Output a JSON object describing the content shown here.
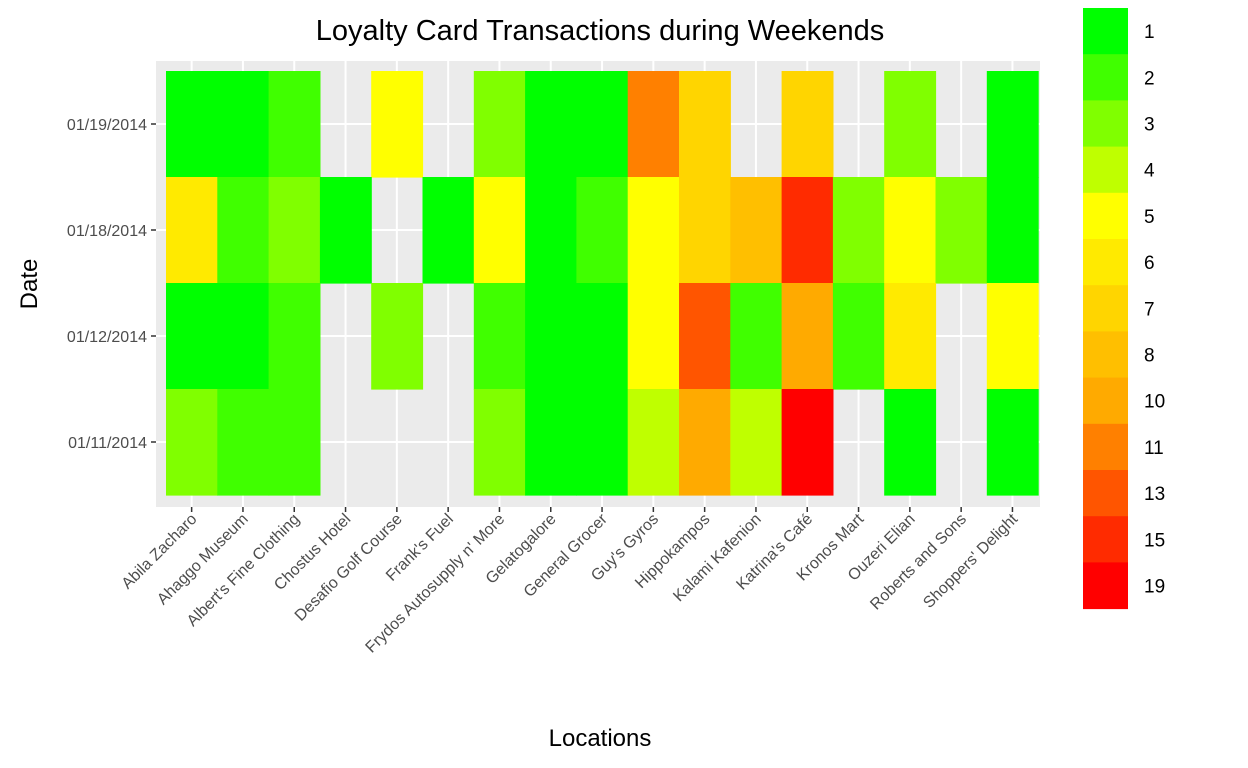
{
  "chart_data": {
    "type": "heatmap",
    "title": "Loyalty Card Transactions during Weekends",
    "xlabel": "Locations",
    "ylabel": "Date",
    "grid": true,
    "legend_position": "right",
    "x_categories": [
      "Abila Zacharo",
      "Ahaggo Museum",
      "Albert's Fine Clothing",
      "Chostus Hotel",
      "Desafio Golf Course",
      "Frank's Fuel",
      "Frydos Autosupply n' More",
      "Gelatogalore",
      "General Grocer",
      "Guy's Gyros",
      "Hippokampos",
      "Kalami Kafenion",
      "Katrina's Café",
      "Kronos Mart",
      "Ouzeri Elian",
      "Roberts and Sons",
      "Shoppers' Delight"
    ],
    "y_categories": [
      "01/11/2014",
      "01/12/2014",
      "01/18/2014",
      "01/19/2014"
    ],
    "cells": [
      {
        "x": "Abila Zacharo",
        "y": "01/19/2014",
        "value": 1
      },
      {
        "x": "Ahaggo Museum",
        "y": "01/19/2014",
        "value": 1
      },
      {
        "x": "Albert's Fine Clothing",
        "y": "01/19/2014",
        "value": 2
      },
      {
        "x": "Desafio Golf Course",
        "y": "01/19/2014",
        "value": 5
      },
      {
        "x": "Frydos Autosupply n' More",
        "y": "01/19/2014",
        "value": 3
      },
      {
        "x": "Gelatogalore",
        "y": "01/19/2014",
        "value": 1
      },
      {
        "x": "General Grocer",
        "y": "01/19/2014",
        "value": 1
      },
      {
        "x": "Guy's Gyros",
        "y": "01/19/2014",
        "value": 11
      },
      {
        "x": "Hippokampos",
        "y": "01/19/2014",
        "value": 7
      },
      {
        "x": "Katrina's Café",
        "y": "01/19/2014",
        "value": 7
      },
      {
        "x": "Ouzeri Elian",
        "y": "01/19/2014",
        "value": 3
      },
      {
        "x": "Shoppers' Delight",
        "y": "01/19/2014",
        "value": 1
      },
      {
        "x": "Abila Zacharo",
        "y": "01/18/2014",
        "value": 6
      },
      {
        "x": "Ahaggo Museum",
        "y": "01/18/2014",
        "value": 2
      },
      {
        "x": "Albert's Fine Clothing",
        "y": "01/18/2014",
        "value": 3
      },
      {
        "x": "Chostus Hotel",
        "y": "01/18/2014",
        "value": 1
      },
      {
        "x": "Frank's Fuel",
        "y": "01/18/2014",
        "value": 1
      },
      {
        "x": "Frydos Autosupply n' More",
        "y": "01/18/2014",
        "value": 5
      },
      {
        "x": "Gelatogalore",
        "y": "01/18/2014",
        "value": 1
      },
      {
        "x": "General Grocer",
        "y": "01/18/2014",
        "value": 2
      },
      {
        "x": "Guy's Gyros",
        "y": "01/18/2014",
        "value": 5
      },
      {
        "x": "Hippokampos",
        "y": "01/18/2014",
        "value": 7
      },
      {
        "x": "Kalami Kafenion",
        "y": "01/18/2014",
        "value": 8
      },
      {
        "x": "Katrina's Café",
        "y": "01/18/2014",
        "value": 15
      },
      {
        "x": "Kronos Mart",
        "y": "01/18/2014",
        "value": 3
      },
      {
        "x": "Ouzeri Elian",
        "y": "01/18/2014",
        "value": 5
      },
      {
        "x": "Roberts and Sons",
        "y": "01/18/2014",
        "value": 3
      },
      {
        "x": "Shoppers' Delight",
        "y": "01/18/2014",
        "value": 1
      },
      {
        "x": "Abila Zacharo",
        "y": "01/12/2014",
        "value": 1
      },
      {
        "x": "Ahaggo Museum",
        "y": "01/12/2014",
        "value": 1
      },
      {
        "x": "Albert's Fine Clothing",
        "y": "01/12/2014",
        "value": 2
      },
      {
        "x": "Desafio Golf Course",
        "y": "01/12/2014",
        "value": 3
      },
      {
        "x": "Frydos Autosupply n' More",
        "y": "01/12/2014",
        "value": 2
      },
      {
        "x": "Gelatogalore",
        "y": "01/12/2014",
        "value": 1
      },
      {
        "x": "General Grocer",
        "y": "01/12/2014",
        "value": 1
      },
      {
        "x": "Guy's Gyros",
        "y": "01/12/2014",
        "value": 5
      },
      {
        "x": "Hippokampos",
        "y": "01/12/2014",
        "value": 13
      },
      {
        "x": "Kalami Kafenion",
        "y": "01/12/2014",
        "value": 2
      },
      {
        "x": "Katrina's Café",
        "y": "01/12/2014",
        "value": 10
      },
      {
        "x": "Kronos Mart",
        "y": "01/12/2014",
        "value": 2
      },
      {
        "x": "Ouzeri Elian",
        "y": "01/12/2014",
        "value": 6
      },
      {
        "x": "Shoppers' Delight",
        "y": "01/12/2014",
        "value": 5
      },
      {
        "x": "Abila Zacharo",
        "y": "01/11/2014",
        "value": 3
      },
      {
        "x": "Ahaggo Museum",
        "y": "01/11/2014",
        "value": 2
      },
      {
        "x": "Albert's Fine Clothing",
        "y": "01/11/2014",
        "value": 2
      },
      {
        "x": "Frydos Autosupply n' More",
        "y": "01/11/2014",
        "value": 3
      },
      {
        "x": "Gelatogalore",
        "y": "01/11/2014",
        "value": 1
      },
      {
        "x": "General Grocer",
        "y": "01/11/2014",
        "value": 1
      },
      {
        "x": "Guy's Gyros",
        "y": "01/11/2014",
        "value": 4
      },
      {
        "x": "Hippokampos",
        "y": "01/11/2014",
        "value": 10
      },
      {
        "x": "Kalami Kafenion",
        "y": "01/11/2014",
        "value": 4
      },
      {
        "x": "Katrina's Café",
        "y": "01/11/2014",
        "value": 19
      },
      {
        "x": "Ouzeri Elian",
        "y": "01/11/2014",
        "value": 1
      },
      {
        "x": "Shoppers' Delight",
        "y": "01/11/2014",
        "value": 1
      }
    ],
    "legend": [
      {
        "label": "1",
        "color": "#00ff00"
      },
      {
        "label": "2",
        "color": "#40ff00"
      },
      {
        "label": "3",
        "color": "#80ff00"
      },
      {
        "label": "4",
        "color": "#bfff00"
      },
      {
        "label": "5",
        "color": "#ffff00"
      },
      {
        "label": "6",
        "color": "#ffea00"
      },
      {
        "label": "7",
        "color": "#ffd500"
      },
      {
        "label": "8",
        "color": "#ffbf00"
      },
      {
        "label": "10",
        "color": "#ffaa00"
      },
      {
        "label": "11",
        "color": "#ff8000"
      },
      {
        "label": "13",
        "color": "#ff5500"
      },
      {
        "label": "15",
        "color": "#ff2b00"
      },
      {
        "label": "19",
        "color": "#ff0000"
      }
    ],
    "panel_background": "#ebebeb",
    "gridline_color": "#ffffff"
  }
}
